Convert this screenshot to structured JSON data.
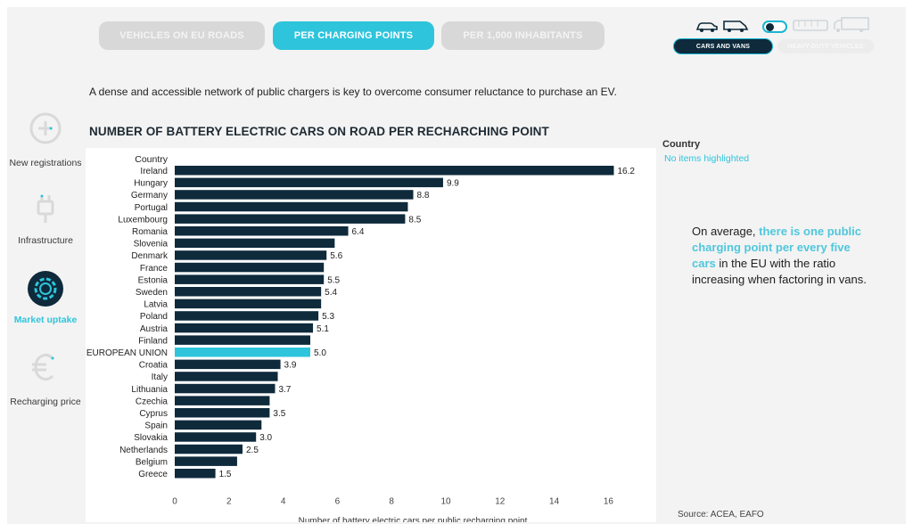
{
  "tabs": [
    {
      "label": "VEHICLES ON EU ROADS",
      "active": false
    },
    {
      "label": "PER CHARGING POINTS",
      "active": true
    },
    {
      "label": "PER 1,000 INHABITANTS",
      "active": false
    }
  ],
  "vehicle_toggle": {
    "cars_label": "CARS AND VANS",
    "heavy_label": "HEAVY-DUTY VEHICLES"
  },
  "sidebar": {
    "items": [
      {
        "label": "New registrations",
        "icon": "plus-icon",
        "active": false
      },
      {
        "label": "Infrastructure",
        "icon": "plug-icon",
        "active": false
      },
      {
        "label": "Market uptake",
        "icon": "gear-icon",
        "active": true
      },
      {
        "label": "Recharging price",
        "icon": "euro-icon",
        "active": false
      }
    ]
  },
  "intro_text": "A dense and accessible network of public chargers is key to overcome consumer reluctance to purchase an EV.",
  "legend": {
    "title": "Country",
    "subtitle": "No items highlighted"
  },
  "callout": {
    "prefix": "On average, ",
    "highlight": "there is one public charging point per every five cars",
    "suffix": " in the EU with the ratio increasing when factoring in vans."
  },
  "source": "Source: ACEA, EAFO",
  "colors": {
    "bar": "#0e2a3b",
    "highlight_bar": "#2ec4dc",
    "accent": "#2ec4dc"
  },
  "chart_data": {
    "type": "bar",
    "orientation": "horizontal",
    "title": "NUMBER OF BATTERY ELECTRIC CARS ON ROAD PER RECHARCHING POINT",
    "category_header": "Country",
    "xlabel": "Number of battery electric cars per public recharging point",
    "xlim": [
      0,
      17.5
    ],
    "xticks": [
      0,
      2,
      4,
      6,
      8,
      10,
      12,
      14,
      16
    ],
    "grid": false,
    "highlight": "EUROPEAN UNION",
    "categories": [
      "Ireland",
      "Hungary",
      "Germany",
      "Portugal",
      "Luxembourg",
      "Romania",
      "Slovenia",
      "Denmark",
      "France",
      "Estonia",
      "Sweden",
      "Latvia",
      "Poland",
      "Austria",
      "Finland",
      "EUROPEAN UNION",
      "Croatia",
      "Italy",
      "Lithuania",
      "Czechia",
      "Cyprus",
      "Spain",
      "Slovakia",
      "Netherlands",
      "Belgium",
      "Greece"
    ],
    "values": [
      16.2,
      9.9,
      8.8,
      8.6,
      8.5,
      6.4,
      5.9,
      5.6,
      5.5,
      5.5,
      5.4,
      5.4,
      5.3,
      5.1,
      5.0,
      5.0,
      3.9,
      3.8,
      3.7,
      3.5,
      3.5,
      3.2,
      3.0,
      2.5,
      2.3,
      1.5
    ],
    "value_labels": [
      "16.2",
      "9.9",
      "8.8",
      "",
      "8.5",
      "6.4",
      "",
      "5.6",
      "",
      "5.5",
      "5.4",
      "",
      "5.3",
      "5.1",
      "",
      "5.0",
      "3.9",
      "",
      "3.7",
      "",
      "3.5",
      "",
      "3.0",
      "2.5",
      "",
      "1.5"
    ]
  }
}
